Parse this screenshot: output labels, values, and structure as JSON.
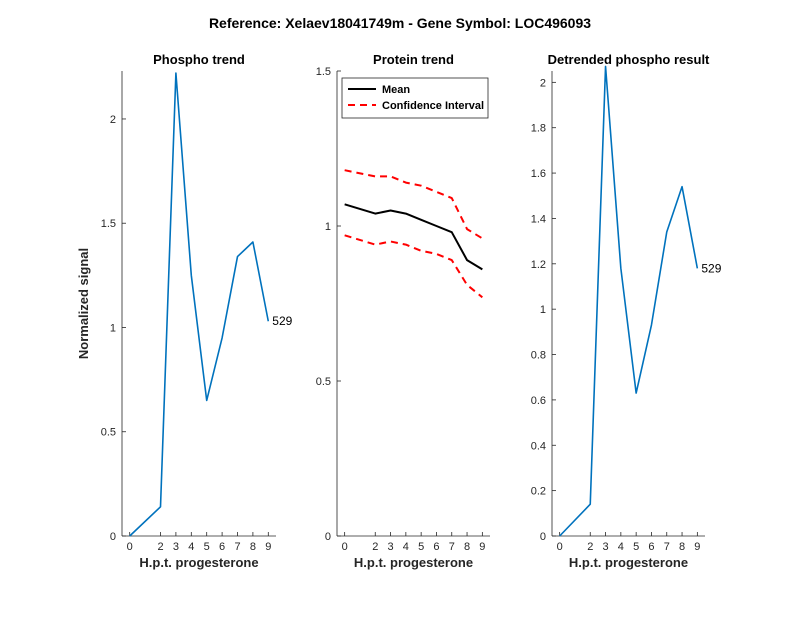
{
  "figure_title": "Reference:  Xelaev18041749m - Gene Symbol:  LOC496093",
  "chart_data": [
    {
      "type": "line",
      "title": "Phospho trend",
      "xlabel": "H.p.t. progesterone",
      "ylabel": "Normalized signal",
      "xlim": [
        -0.5,
        9.5
      ],
      "ylim": [
        0,
        2.23
      ],
      "xticks": [
        0,
        2,
        3,
        4,
        5,
        6,
        7,
        8,
        9
      ],
      "yticks": [
        0,
        0.5,
        1,
        1.5,
        2
      ],
      "ytick_labels": [
        "0",
        "0.5",
        "1",
        "1.5",
        "2"
      ],
      "grid": false,
      "annotation": "529",
      "series": [
        {
          "color": "#0072BD",
          "dash": "solid",
          "x": [
            0,
            2,
            3,
            4,
            5,
            6,
            7,
            8,
            9
          ],
          "y": [
            0.0,
            0.14,
            2.22,
            1.25,
            0.65,
            0.95,
            1.34,
            1.41,
            1.03
          ]
        }
      ]
    },
    {
      "type": "line",
      "title": "Protein trend",
      "xlabel": "H.p.t. progesterone",
      "ylabel": "",
      "xlim": [
        -0.5,
        9.5
      ],
      "ylim": [
        0,
        1.5
      ],
      "xticks": [
        0,
        2,
        3,
        4,
        5,
        6,
        7,
        8,
        9
      ],
      "yticks": [
        0,
        0.5,
        1,
        1.5
      ],
      "ytick_labels": [
        "0",
        "0.5",
        "1",
        "1.5"
      ],
      "grid": false,
      "legend_position": "top-left",
      "series": [
        {
          "name": "Mean",
          "color": "#000000",
          "dash": "solid",
          "x": [
            0,
            2,
            3,
            4,
            5,
            6,
            7,
            8,
            9
          ],
          "y": [
            1.07,
            1.04,
            1.05,
            1.04,
            1.02,
            1.0,
            0.98,
            0.89,
            0.86
          ]
        },
        {
          "name": "Confidence Interval",
          "color": "#FF0000",
          "dash": "dashed",
          "x": [
            0,
            2,
            3,
            4,
            5,
            6,
            7,
            8,
            9
          ],
          "y": [
            1.18,
            1.16,
            1.16,
            1.14,
            1.13,
            1.11,
            1.09,
            0.99,
            0.96
          ]
        },
        {
          "name": "",
          "color": "#FF0000",
          "dash": "dashed",
          "x": [
            0,
            2,
            3,
            4,
            5,
            6,
            7,
            8,
            9
          ],
          "y": [
            0.97,
            0.94,
            0.95,
            0.94,
            0.92,
            0.91,
            0.89,
            0.81,
            0.77
          ]
        }
      ]
    },
    {
      "type": "line",
      "title": "Detrended phospho result",
      "xlabel": "H.p.t. progesterone",
      "ylabel": "",
      "xlim": [
        -0.5,
        9.5
      ],
      "ylim": [
        0,
        2.05
      ],
      "xticks": [
        0,
        2,
        3,
        4,
        5,
        6,
        7,
        8,
        9
      ],
      "yticks": [
        0,
        0.2,
        0.4,
        0.6,
        0.8,
        1,
        1.2,
        1.4,
        1.6,
        1.8,
        2
      ],
      "ytick_labels": [
        "0",
        "0.2",
        "0.4",
        "0.6",
        "0.8",
        "1",
        "1.2",
        "1.4",
        "1.6",
        "1.8",
        "2"
      ],
      "grid": false,
      "annotation": "529",
      "series": [
        {
          "color": "#0072BD",
          "dash": "solid",
          "x": [
            0,
            2,
            3,
            4,
            5,
            6,
            7,
            8,
            9
          ],
          "y": [
            0.0,
            0.14,
            2.07,
            1.18,
            0.63,
            0.93,
            1.34,
            1.54,
            1.18
          ]
        }
      ]
    }
  ]
}
